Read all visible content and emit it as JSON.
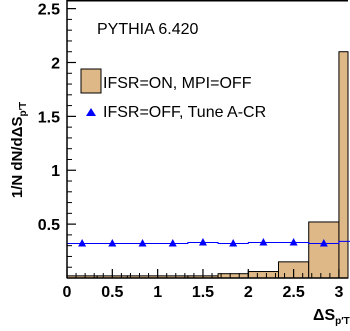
{
  "colors": {
    "hist_fill": "#deb887",
    "hist_line": "#000000",
    "series_line": "#0000ff",
    "marker": "#0000ff"
  },
  "chart_data": {
    "type": "bar",
    "annotation": "PYTHIA 6.420",
    "ylabel": "1/N dN/dΔS",
    "ylabel_subscript": "p′T",
    "xlabel": "ΔS",
    "xlabel_subscript": "p′T",
    "xlim": [
      0,
      3.1
    ],
    "ylim": [
      0,
      2.58
    ],
    "x_ticks": [
      "0",
      "0.5",
      "1",
      "1.5",
      "2",
      "2.5",
      "3"
    ],
    "y_ticks": [
      "0.5",
      "1",
      "1.5",
      "2",
      "2.5"
    ],
    "legend_position": "top-left",
    "grid": false,
    "series": [
      {
        "name": "IFSR=ON, MPI=OFF",
        "style": "filled-histogram",
        "bin_edges": [
          0,
          0.3333,
          0.6667,
          1.0,
          1.3333,
          1.6667,
          2.0,
          2.3333,
          2.6667,
          3.0,
          3.3333
        ],
        "values": [
          0.02,
          0.02,
          0.02,
          0.02,
          0.02,
          0.04,
          0.06,
          0.15,
          0.52,
          2.1
        ]
      },
      {
        "name": "IFSR=OFF, Tune A-CR",
        "style": "markers-step",
        "x": [
          0.1667,
          0.5,
          0.8333,
          1.1667,
          1.5,
          1.8333,
          2.1667,
          2.5,
          2.8333,
          3.1667
        ],
        "values": [
          0.32,
          0.32,
          0.32,
          0.32,
          0.33,
          0.32,
          0.33,
          0.33,
          0.32,
          0.34
        ]
      }
    ]
  }
}
